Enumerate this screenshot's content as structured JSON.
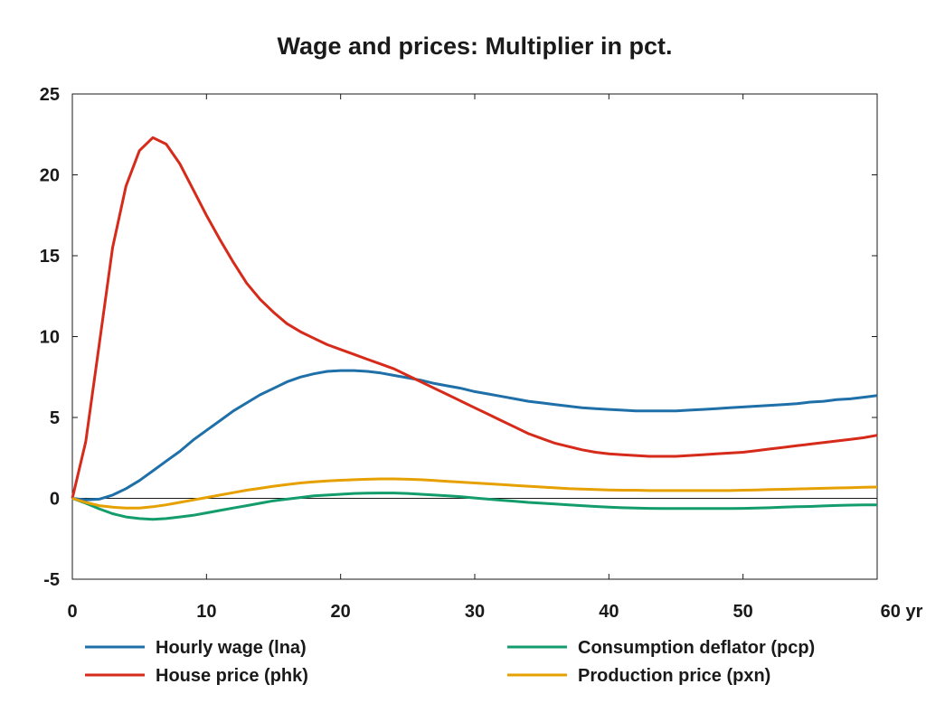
{
  "chart_data": {
    "type": "line",
    "title": "Wage and prices: Multiplier in pct.",
    "xlabel": "",
    "ylabel": "",
    "x_unit_label": "yr",
    "xlim": [
      0,
      60
    ],
    "ylim": [
      -5,
      25
    ],
    "x_ticks": [
      0,
      10,
      20,
      30,
      40,
      50,
      60
    ],
    "y_ticks": [
      -5,
      0,
      5,
      10,
      15,
      20,
      25
    ],
    "grid": false,
    "zero_line": true,
    "legend_position": "bottom",
    "x": [
      0,
      1,
      2,
      3,
      4,
      5,
      6,
      7,
      8,
      9,
      10,
      11,
      12,
      13,
      14,
      15,
      16,
      17,
      18,
      19,
      20,
      21,
      22,
      23,
      24,
      25,
      26,
      27,
      28,
      29,
      30,
      31,
      32,
      33,
      34,
      35,
      36,
      37,
      38,
      39,
      40,
      41,
      42,
      43,
      44,
      45,
      46,
      47,
      48,
      49,
      50,
      51,
      52,
      53,
      54,
      55,
      56,
      57,
      58,
      59,
      60
    ],
    "series": [
      {
        "name": "Hourly wage (lna)",
        "color": "#1f6fa8",
        "values": [
          0.0,
          -0.1,
          -0.05,
          0.2,
          0.6,
          1.1,
          1.7,
          2.3,
          2.9,
          3.6,
          4.2,
          4.8,
          5.4,
          5.9,
          6.4,
          6.8,
          7.2,
          7.5,
          7.7,
          7.85,
          7.9,
          7.9,
          7.85,
          7.75,
          7.6,
          7.45,
          7.3,
          7.1,
          6.95,
          6.8,
          6.6,
          6.45,
          6.3,
          6.15,
          6.0,
          5.9,
          5.8,
          5.7,
          5.6,
          5.55,
          5.5,
          5.45,
          5.4,
          5.4,
          5.4,
          5.4,
          5.45,
          5.5,
          5.55,
          5.6,
          5.65,
          5.7,
          5.75,
          5.8,
          5.85,
          5.95,
          6.0,
          6.1,
          6.15,
          6.25,
          6.35
        ]
      },
      {
        "name": "House price (phk)",
        "color": "#d62a1a",
        "values": [
          0.0,
          3.5,
          9.5,
          15.5,
          19.3,
          21.5,
          22.3,
          21.9,
          20.7,
          19.1,
          17.5,
          16.0,
          14.6,
          13.3,
          12.3,
          11.5,
          10.8,
          10.3,
          9.9,
          9.5,
          9.2,
          8.9,
          8.6,
          8.3,
          8.0,
          7.6,
          7.2,
          6.8,
          6.4,
          6.0,
          5.6,
          5.2,
          4.8,
          4.4,
          4.0,
          3.7,
          3.4,
          3.2,
          3.0,
          2.85,
          2.75,
          2.7,
          2.65,
          2.6,
          2.6,
          2.6,
          2.65,
          2.7,
          2.75,
          2.8,
          2.85,
          2.95,
          3.05,
          3.15,
          3.25,
          3.35,
          3.45,
          3.55,
          3.65,
          3.75,
          3.9
        ]
      },
      {
        "name": "Consumption deflator (pcp)",
        "color": "#139c6c",
        "values": [
          0.0,
          -0.3,
          -0.65,
          -0.95,
          -1.15,
          -1.25,
          -1.3,
          -1.25,
          -1.15,
          -1.05,
          -0.9,
          -0.75,
          -0.6,
          -0.45,
          -0.3,
          -0.15,
          -0.05,
          0.05,
          0.15,
          0.2,
          0.25,
          0.3,
          0.32,
          0.33,
          0.33,
          0.3,
          0.25,
          0.2,
          0.15,
          0.1,
          0.02,
          -0.05,
          -0.12,
          -0.18,
          -0.25,
          -0.3,
          -0.35,
          -0.4,
          -0.45,
          -0.5,
          -0.55,
          -0.58,
          -0.6,
          -0.62,
          -0.63,
          -0.63,
          -0.63,
          -0.63,
          -0.63,
          -0.63,
          -0.62,
          -0.6,
          -0.58,
          -0.55,
          -0.52,
          -0.5,
          -0.47,
          -0.44,
          -0.42,
          -0.4,
          -0.4
        ]
      },
      {
        "name": "Production price (pxn)",
        "color": "#e6a000",
        "values": [
          0.0,
          -0.25,
          -0.45,
          -0.55,
          -0.6,
          -0.6,
          -0.52,
          -0.4,
          -0.25,
          -0.1,
          0.05,
          0.2,
          0.35,
          0.5,
          0.62,
          0.75,
          0.85,
          0.95,
          1.02,
          1.08,
          1.12,
          1.15,
          1.18,
          1.2,
          1.2,
          1.18,
          1.15,
          1.1,
          1.05,
          1.0,
          0.95,
          0.9,
          0.85,
          0.8,
          0.75,
          0.7,
          0.65,
          0.6,
          0.57,
          0.55,
          0.52,
          0.5,
          0.5,
          0.48,
          0.48,
          0.48,
          0.48,
          0.48,
          0.48,
          0.48,
          0.5,
          0.52,
          0.54,
          0.56,
          0.58,
          0.6,
          0.62,
          0.64,
          0.66,
          0.68,
          0.7
        ]
      }
    ]
  }
}
